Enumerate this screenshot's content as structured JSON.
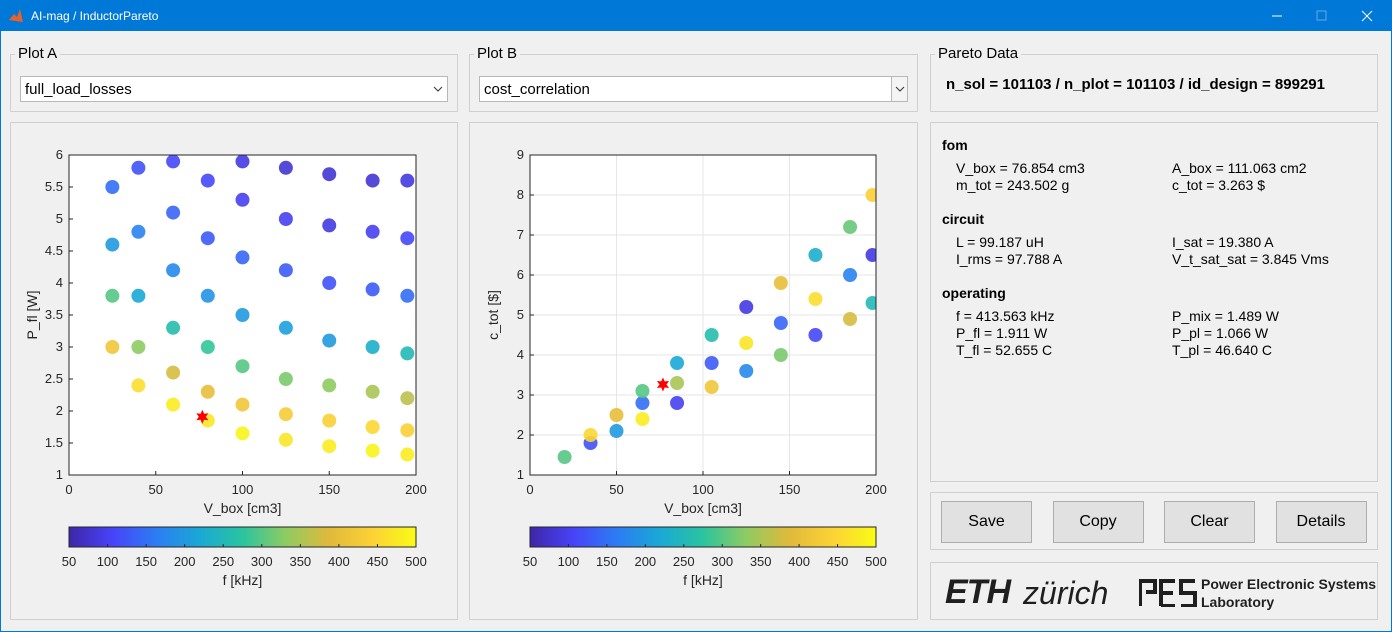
{
  "window": {
    "title": "AI-mag / InductorPareto"
  },
  "plot_a": {
    "label": "Plot A",
    "select": "full_load_losses",
    "chart": {
      "type": "scatter",
      "xlabel": "V_box [cm3]",
      "ylabel": "P_fl [W]",
      "xlim": [
        0,
        200
      ],
      "xticks": [
        0,
        50,
        100,
        150,
        200
      ],
      "ylim": [
        1,
        6
      ],
      "yticks": [
        1,
        1.5,
        2,
        2.5,
        3,
        3.5,
        4,
        4.5,
        5,
        5.5,
        6
      ],
      "grid": false,
      "x": [
        25,
        25,
        25,
        25,
        40,
        40,
        40,
        40,
        40,
        60,
        60,
        60,
        60,
        60,
        60,
        80,
        80,
        80,
        80,
        80,
        80,
        100,
        100,
        100,
        100,
        100,
        100,
        100,
        125,
        125,
        125,
        125,
        125,
        125,
        125,
        150,
        150,
        150,
        150,
        150,
        150,
        150,
        175,
        175,
        175,
        175,
        175,
        175,
        175,
        195,
        195,
        195,
        195,
        195,
        195,
        195
      ],
      "y": [
        3.0,
        3.8,
        4.6,
        5.5,
        2.4,
        3.0,
        3.8,
        4.8,
        5.8,
        2.1,
        2.6,
        3.3,
        4.2,
        5.1,
        5.9,
        1.85,
        2.3,
        3.0,
        3.8,
        4.7,
        5.6,
        1.65,
        2.1,
        2.7,
        3.5,
        4.4,
        5.3,
        5.9,
        1.55,
        1.95,
        2.5,
        3.3,
        4.2,
        5.0,
        5.8,
        1.45,
        1.85,
        2.4,
        3.1,
        4.0,
        4.9,
        5.7,
        1.38,
        1.75,
        2.3,
        3.0,
        3.9,
        4.8,
        5.6,
        1.32,
        1.7,
        2.2,
        2.9,
        3.8,
        4.7,
        5.6
      ],
      "c": [
        420,
        300,
        200,
        150,
        460,
        330,
        220,
        170,
        120,
        480,
        380,
        260,
        180,
        140,
        110,
        470,
        400,
        280,
        190,
        130,
        110,
        490,
        420,
        300,
        200,
        140,
        100,
        90,
        470,
        430,
        320,
        210,
        130,
        100,
        80,
        480,
        440,
        330,
        200,
        120,
        90,
        80,
        490,
        450,
        350,
        230,
        130,
        100,
        80,
        480,
        440,
        360,
        250,
        150,
        110,
        90
      ],
      "highlight": {
        "x": 76.854,
        "y": 1.911,
        "color": "#ff0000"
      },
      "colorbar": {
        "label": "f [kHz]",
        "clim": [
          50,
          500
        ],
        "ticks": [
          50,
          100,
          150,
          200,
          250,
          300,
          350,
          400,
          450,
          500
        ],
        "colormap": [
          "#3e26a8",
          "#4743f8",
          "#2c7cf4",
          "#1aa8d6",
          "#2ac49f",
          "#8fcb62",
          "#e1b93b",
          "#fcd236",
          "#f9fb15"
        ]
      }
    }
  },
  "plot_b": {
    "label": "Plot B",
    "select": "cost_correlation",
    "chart": {
      "type": "scatter",
      "xlabel": "V_box [cm3]",
      "ylabel": "c_tot [$]",
      "xlim": [
        0,
        200
      ],
      "xticks": [
        0,
        50,
        100,
        150,
        200
      ],
      "ylim": [
        1,
        9
      ],
      "yticks": [
        1,
        2,
        3,
        4,
        5,
        6,
        7,
        8,
        9
      ],
      "grid": true,
      "x": [
        20,
        35,
        35,
        50,
        50,
        65,
        65,
        65,
        85,
        85,
        85,
        105,
        105,
        105,
        125,
        125,
        125,
        145,
        145,
        145,
        165,
        165,
        165,
        185,
        185,
        185,
        198,
        198,
        198
      ],
      "y": [
        1.45,
        1.8,
        2.0,
        2.1,
        2.5,
        2.4,
        2.8,
        3.1,
        2.8,
        3.3,
        3.8,
        3.2,
        3.8,
        4.5,
        3.6,
        4.3,
        5.2,
        4.0,
        4.8,
        5.8,
        4.5,
        5.4,
        6.5,
        4.9,
        6.0,
        7.2,
        5.3,
        6.5,
        8.0
      ],
      "c": [
        300,
        120,
        450,
        200,
        400,
        480,
        150,
        300,
        100,
        350,
        220,
        420,
        130,
        260,
        180,
        470,
        90,
        320,
        140,
        400,
        110,
        460,
        230,
        380,
        170,
        310,
        250,
        90,
        440
      ],
      "highlight": {
        "x": 76.854,
        "y": 3.263,
        "color": "#ff0000"
      },
      "colorbar": {
        "label": "f [kHz]",
        "clim": [
          50,
          500
        ],
        "ticks": [
          50,
          100,
          150,
          200,
          250,
          300,
          350,
          400,
          450,
          500
        ],
        "colormap": [
          "#3e26a8",
          "#4743f8",
          "#2c7cf4",
          "#1aa8d6",
          "#2ac49f",
          "#8fcb62",
          "#e1b93b",
          "#fcd236",
          "#f9fb15"
        ]
      }
    }
  },
  "pareto": {
    "label": "Pareto Data",
    "summary": "n_sol = 101103 / n_plot = 101103 / id_design = 899291",
    "sections": [
      {
        "title": "fom",
        "items": [
          "V_box = 76.854 cm3",
          "A_box = 111.063 cm2",
          "m_tot = 243.502 g",
          "c_tot = 3.263 $"
        ]
      },
      {
        "title": "circuit",
        "items": [
          "L = 99.187 uH",
          "I_sat = 19.380 A",
          "I_rms = 97.788 A",
          "V_t_sat_sat = 3.845 Vms"
        ]
      },
      {
        "title": "operating",
        "items": [
          "f = 413.563 kHz",
          "P_mix = 1.489 W",
          "P_fl = 1.911 W",
          "P_pl = 1.066 W",
          "T_fl = 52.655 C",
          "T_pl = 46.640 C"
        ]
      }
    ]
  },
  "buttons": [
    "Save",
    "Copy",
    "Clear",
    "Details"
  ],
  "logo": {
    "eth": "ETH",
    "zurich": "zürich",
    "lab_line1": "Power Electronic Systems",
    "lab_line2": "Laboratory"
  }
}
